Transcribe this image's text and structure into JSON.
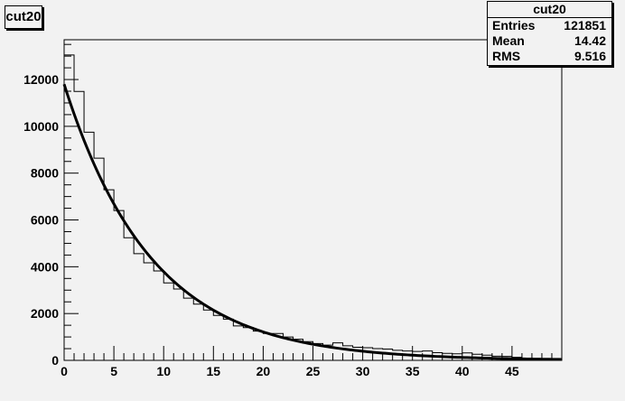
{
  "chart_data": {
    "type": "bar",
    "title": "cut20",
    "xlabel": "",
    "ylabel": "",
    "xlim": [
      0,
      50
    ],
    "ylim": [
      0,
      13700
    ],
    "bin_width": 1,
    "x_ticks": [
      0,
      5,
      10,
      15,
      20,
      25,
      30,
      35,
      40,
      45
    ],
    "y_ticks": [
      0,
      2000,
      4000,
      6000,
      8000,
      10000,
      12000
    ],
    "values": [
      13050,
      11490,
      9750,
      8640,
      7290,
      6400,
      5240,
      4560,
      4170,
      3820,
      3310,
      3050,
      2660,
      2400,
      2150,
      1920,
      1760,
      1470,
      1400,
      1250,
      1150,
      1150,
      1000,
      900,
      800,
      720,
      650,
      750,
      620,
      560,
      540,
      500,
      480,
      430,
      400,
      380,
      400,
      330,
      300,
      280,
      320,
      260,
      220,
      180,
      170,
      130,
      80,
      60,
      40,
      20
    ],
    "fit": {
      "function": "exponential",
      "amplitude": 11800,
      "decay_length": 8.8
    },
    "stats": {
      "title": "cut20",
      "rows": [
        {
          "label": "Entries",
          "value": "121851"
        },
        {
          "label": "Mean",
          "value": "14.42"
        },
        {
          "label": "RMS",
          "value": "9.516"
        }
      ]
    }
  }
}
